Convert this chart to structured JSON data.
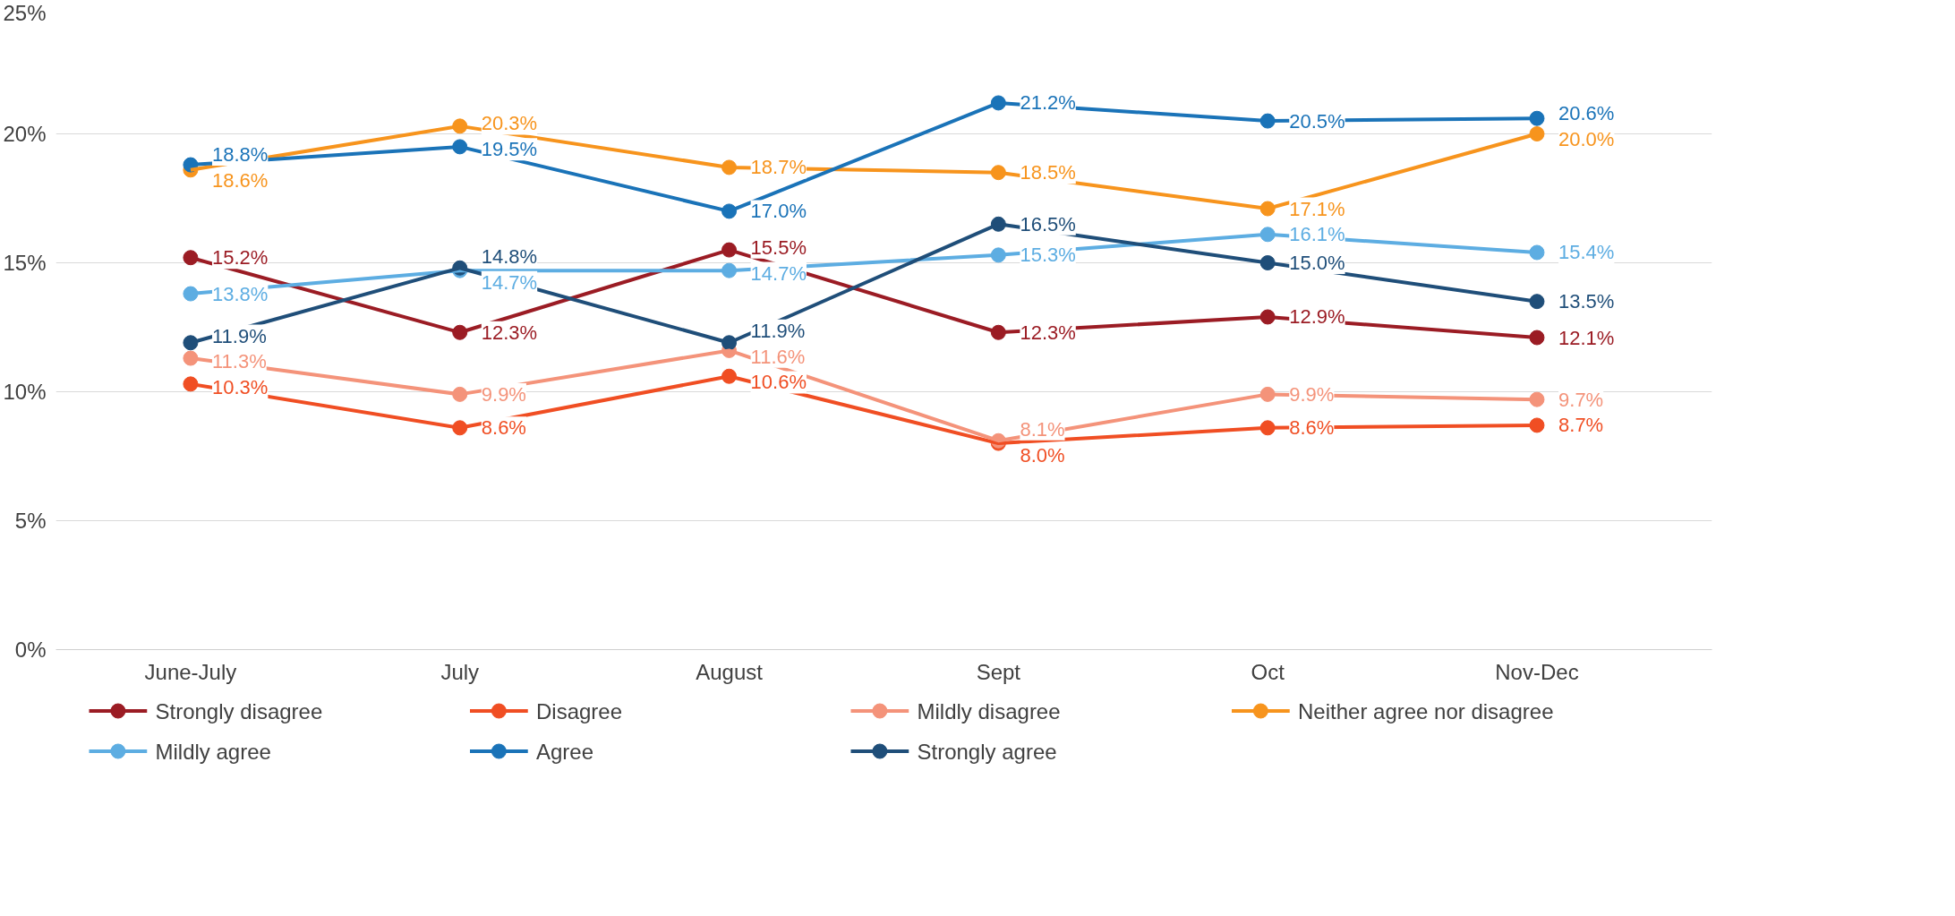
{
  "chart_data": {
    "type": "line",
    "categories": [
      "June-July",
      "July",
      "August",
      "Sept",
      "Oct",
      "Nov-Dec"
    ],
    "ylim": [
      0,
      25
    ],
    "yticks": [
      {
        "value": 0,
        "label": "0%"
      },
      {
        "value": 5,
        "label": "5%"
      },
      {
        "value": 10,
        "label": "10%"
      },
      {
        "value": 15,
        "label": "15%"
      },
      {
        "value": 20,
        "label": "20%"
      },
      {
        "value": 25,
        "label": "25%"
      }
    ],
    "grid": "y",
    "legend": "bottom",
    "marker": "circle",
    "line_style": "solid",
    "series": [
      {
        "name": "Strongly disagree",
        "color": "#9b1c24",
        "values": [
          15.2,
          12.3,
          15.5,
          12.3,
          12.9,
          12.1
        ],
        "value_labels": [
          "15.2%",
          "12.3%",
          "15.5%",
          "12.3%",
          "12.9%",
          "12.1%"
        ]
      },
      {
        "name": "Disagree",
        "color": "#f04e23",
        "values": [
          10.3,
          8.6,
          10.6,
          8.0,
          8.6,
          8.7
        ],
        "value_labels": [
          "10.3%",
          "8.6%",
          "10.6%",
          "8.0%",
          "8.6%",
          "8.7%"
        ]
      },
      {
        "name": "Mildly disagree",
        "color": "#f4937a",
        "values": [
          11.3,
          9.9,
          11.6,
          8.1,
          9.9,
          9.7
        ],
        "value_labels": [
          "11.3%",
          "9.9%",
          "11.6%",
          "8.1%",
          "9.9%",
          "9.7%"
        ]
      },
      {
        "name": "Neither agree nor disagree",
        "color": "#f7941d",
        "values": [
          18.6,
          20.3,
          18.7,
          18.5,
          17.1,
          20.0
        ],
        "value_labels": [
          "18.6%",
          "20.3%",
          "18.7%",
          "18.5%",
          "17.1%",
          "20.0%"
        ]
      },
      {
        "name": "Mildly agree",
        "color": "#5dade2",
        "values": [
          13.8,
          14.7,
          14.7,
          15.3,
          16.1,
          15.4
        ],
        "value_labels": [
          "13.8%",
          "14.7%",
          "14.7%",
          "15.3%",
          "16.1%",
          "15.4%"
        ]
      },
      {
        "name": "Agree",
        "color": "#1a73b8",
        "values": [
          18.8,
          19.5,
          17.0,
          21.2,
          20.5,
          20.6
        ],
        "value_labels": [
          "18.8%",
          "19.5%",
          "17.0%",
          "21.2%",
          "20.5%",
          "20.6%"
        ]
      },
      {
        "name": "Strongly agree",
        "color": "#1f4e79",
        "values": [
          11.9,
          14.8,
          11.9,
          16.5,
          15.0,
          13.5
        ],
        "value_labels": [
          "11.9%",
          "14.8%",
          "11.9%",
          "16.5%",
          "15.0%",
          "13.5%"
        ]
      }
    ]
  }
}
